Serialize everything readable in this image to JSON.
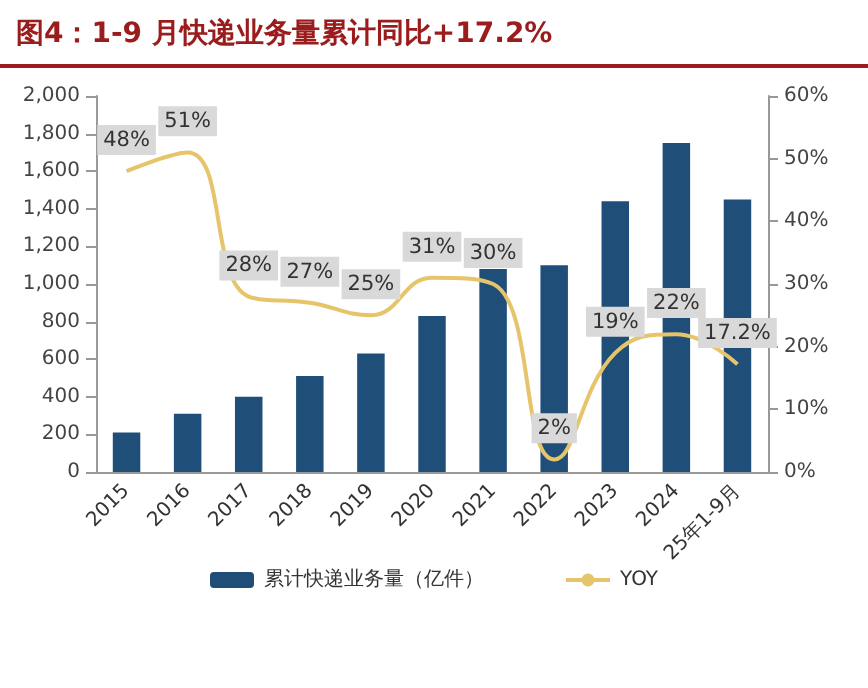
{
  "chart_data": {
    "type": "bar",
    "title": "图4：1-9 月快递业务量累计同比+17.2%",
    "categories": [
      "2015",
      "2016",
      "2017",
      "2018",
      "2019",
      "2020",
      "2021",
      "2022",
      "2023",
      "2024",
      "25年1-9月"
    ],
    "series": [
      {
        "name": "累计快递业务量（亿件）",
        "color": "#1f4e79",
        "values": [
          210,
          310,
          400,
          510,
          630,
          830,
          1080,
          1100,
          1440,
          1750,
          1450
        ]
      },
      {
        "name": "YOY",
        "type": "line",
        "axis": "y2",
        "color": "#e6c46a",
        "values": [
          48,
          51,
          28,
          27,
          25,
          31,
          30,
          2,
          19,
          22,
          17.2
        ],
        "value_labels": [
          "48%",
          "51%",
          "28%",
          "27%",
          "25%",
          "31%",
          "30%",
          "2%",
          "19%",
          "22%",
          "17.2%"
        ]
      }
    ],
    "ylim": [
      0,
      2000
    ],
    "yticks": [
      0,
      {
        "value": 200,
        "label": "200"
      },
      {
        "value": 400,
        "label": "400"
      },
      {
        "value": 600,
        "label": "600"
      },
      {
        "value": 800,
        "label": "800"
      },
      {
        "value": 1000,
        "label": "1,000"
      },
      {
        "value": 1200,
        "label": "1,200"
      },
      {
        "value": 1400,
        "label": "1,400"
      },
      {
        "value": 1600,
        "label": "1,600"
      },
      {
        "value": 1800,
        "label": "1,800"
      },
      {
        "value": 2000,
        "label": "2,000"
      }
    ],
    "y2lim": [
      0,
      60
    ],
    "y2ticks": [
      {
        "value": 0,
        "label": "0%"
      },
      {
        "value": 10,
        "label": "10%"
      },
      {
        "value": 20,
        "label": "20%"
      },
      {
        "value": 30,
        "label": "30%"
      },
      {
        "value": 40,
        "label": "40%"
      },
      {
        "value": 50,
        "label": "50%"
      },
      {
        "value": 60,
        "label": "60%"
      }
    ],
    "grid": false,
    "legend": "bottom"
  }
}
